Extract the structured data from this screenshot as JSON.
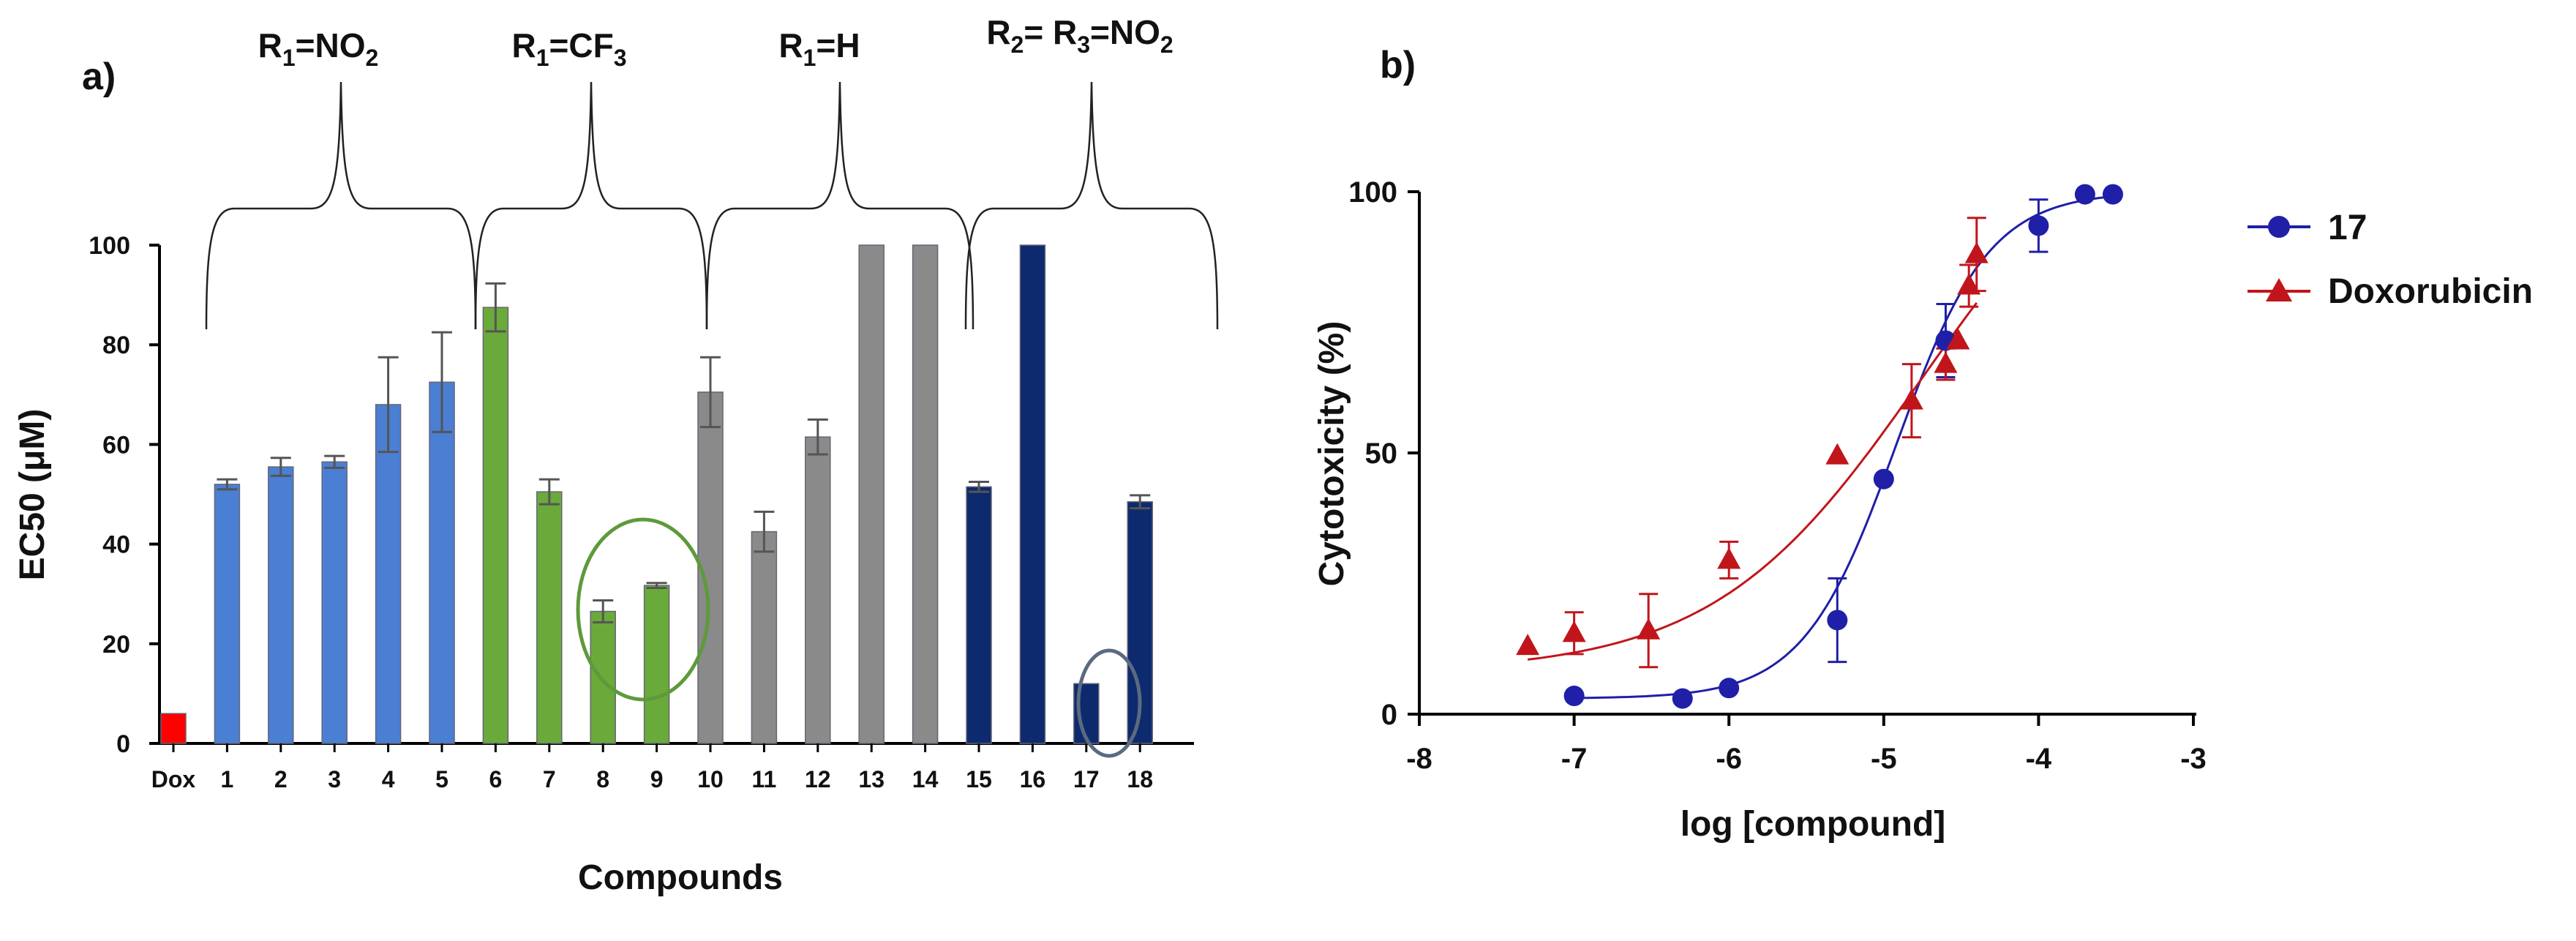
{
  "panel_a": {
    "label": "a)",
    "groups": [
      {
        "label_main": "R",
        "label_sub": "1",
        "label_rest": "=NO",
        "label_sub2": "2",
        "label_rest2": ""
      },
      {
        "label_main": "R",
        "label_sub": "1",
        "label_rest": "=CF",
        "label_sub2": "3",
        "label_rest2": ""
      },
      {
        "label_main": "R",
        "label_sub": "1",
        "label_rest": "=H",
        "label_sub2": "",
        "label_rest2": ""
      },
      {
        "label_main": "R",
        "label_sub": "2",
        "label_rest": "= R",
        "label_sub2": "3",
        "label_rest2": "=NO",
        "label_sub3": "2"
      }
    ]
  },
  "panel_b": {
    "label": "b)"
  },
  "colors": {
    "red": "#ff0000",
    "blue": "#4a7fd4",
    "green": "#6aaa3a",
    "gray": "#8a8a8a",
    "navy": "#0e2a6e",
    "ring_green": "#5e9a3a",
    "ring_navy": "#5a6b80",
    "curve_blue": "#1f1fa8",
    "curve_red": "#c0161b"
  },
  "chart_data": [
    {
      "type": "bar",
      "title": "",
      "xlabel": "Compounds",
      "ylabel": "EC50 (μM)",
      "ylim": [
        0,
        100
      ],
      "yticks": [
        0,
        20,
        40,
        60,
        80,
        100
      ],
      "categories": [
        "Dox",
        "1",
        "2",
        "3",
        "4",
        "5",
        "6",
        "7",
        "8",
        "9",
        "10",
        "11",
        "12",
        "13",
        "14",
        "15",
        "16",
        "17",
        "18"
      ],
      "values": [
        6,
        52,
        55.5,
        56.5,
        68,
        72.5,
        87.5,
        50.5,
        26.5,
        31.7,
        70.5,
        42.5,
        61.5,
        100,
        100,
        51.5,
        100,
        12,
        48.5
      ],
      "errors": [
        0,
        1,
        1.8,
        1.2,
        9.5,
        10,
        4.8,
        2.5,
        2.2,
        0.5,
        7,
        4,
        3.5,
        0,
        0,
        1,
        0,
        0,
        1.3
      ],
      "bar_colors": [
        "red",
        "blue",
        "blue",
        "blue",
        "blue",
        "blue",
        "green",
        "green",
        "green",
        "green",
        "gray",
        "gray",
        "gray",
        "gray",
        "gray",
        "navy",
        "navy",
        "navy",
        "navy"
      ],
      "highlighted": [
        [
          "8",
          "9"
        ],
        [
          "17"
        ]
      ]
    },
    {
      "type": "line",
      "title": "",
      "xlabel": "log [compound]",
      "ylabel": "Cytotoxicity (%)",
      "xlim": [
        -8,
        -3
      ],
      "ylim": [
        0,
        100
      ],
      "xticks": [
        -8,
        -7,
        -6,
        -5,
        -4,
        -3
      ],
      "yticks": [
        0,
        50,
        100
      ],
      "legend_position": "top-right",
      "series": [
        {
          "name": "17",
          "marker": "circle",
          "color": "curve_blue",
          "x": [
            -7,
            -6.3,
            -6,
            -5.3,
            -5,
            -4.6,
            -4,
            -3.7,
            -3.52
          ],
          "y": [
            3.5,
            3,
            5,
            18,
            45,
            71.5,
            93.5,
            99.5,
            99.5
          ],
          "err": [
            0,
            0,
            0,
            8,
            0,
            7,
            5,
            0,
            0
          ],
          "fit": {
            "bottom": 3,
            "top": 100,
            "log_ec50": -4.92,
            "hill": 1.45
          }
        },
        {
          "name": "Doxorubicin",
          "marker": "triangle",
          "color": "curve_red",
          "x": [
            -7.3,
            -7,
            -6.52,
            -6,
            -5.3,
            -4.82,
            -4.6,
            -4.52,
            -4.45,
            -4.4
          ],
          "y": [
            13,
            15.5,
            16,
            29.5,
            49.5,
            60,
            67,
            71.5,
            82,
            88
          ],
          "err": [
            0,
            4,
            7,
            3.5,
            0,
            7,
            3,
            0,
            4,
            7
          ],
          "fit": {
            "bottom": 8,
            "top": 120,
            "log_ec50": -4.76,
            "hill": 0.65
          }
        }
      ]
    }
  ]
}
